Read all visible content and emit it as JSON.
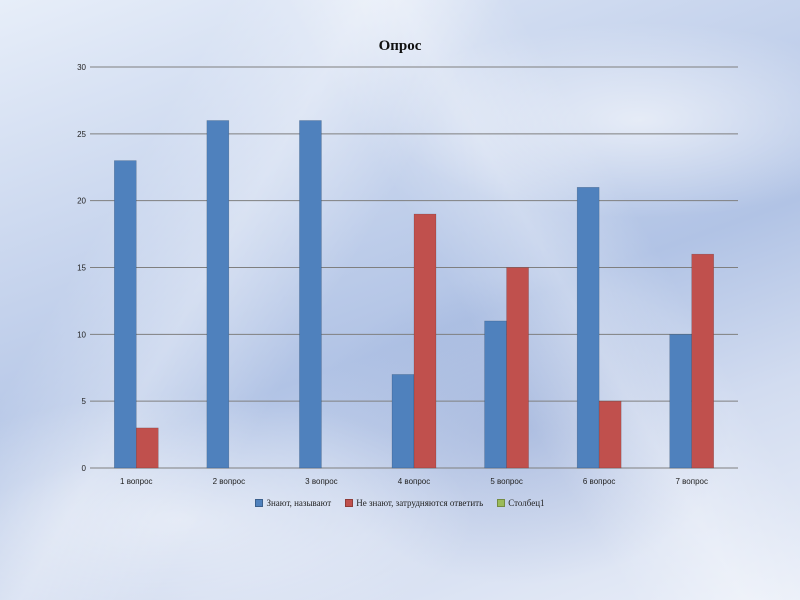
{
  "colors": {
    "series_1": "#4f81bd",
    "series_2": "#c0504d",
    "series_3": "#9bbb59",
    "grid": "#7f7f7f"
  },
  "chart_data": {
    "type": "bar",
    "title": "Опрос",
    "categories": [
      "1 вопрос",
      "2 вопрос",
      "3 вопрос",
      "4 вопрос",
      "5 вопрос",
      "6 вопрос",
      "7 вопрос"
    ],
    "series": [
      {
        "name": "Знают, называют",
        "values": [
          23,
          26,
          26,
          7,
          11,
          21,
          10
        ]
      },
      {
        "name": "Не знают, затрудняются ответить",
        "values": [
          3,
          0,
          0,
          19,
          15,
          5,
          16
        ]
      },
      {
        "name": "Столбец1",
        "values": [
          0,
          0,
          0,
          0,
          0,
          0,
          0
        ]
      }
    ],
    "xlabel": "",
    "ylabel": "",
    "ylim": [
      0,
      30
    ],
    "yticks": [
      0,
      5,
      10,
      15,
      20,
      25,
      30
    ],
    "grid": true,
    "legend": "bottom"
  }
}
